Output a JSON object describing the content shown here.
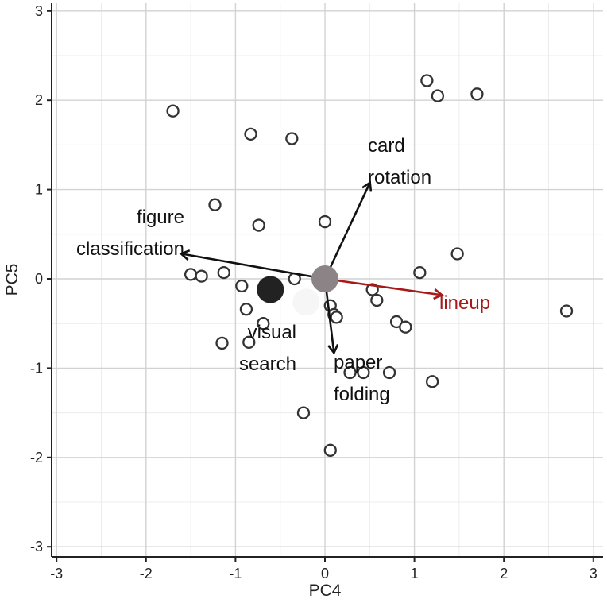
{
  "chart_data": {
    "type": "scatter",
    "xlabel": "PC4",
    "ylabel": "PC5",
    "xlim": [
      -3.1,
      3.1
    ],
    "ylim": [
      -3.1,
      3.1
    ],
    "xticks": [
      -3,
      -2,
      -1,
      0,
      1,
      2,
      3
    ],
    "yticks": [
      -3,
      -2,
      -1,
      0,
      1,
      2,
      3
    ],
    "grid": true,
    "points": [
      {
        "x": -1.7,
        "y": 1.88
      },
      {
        "x": -0.83,
        "y": 1.62
      },
      {
        "x": -0.37,
        "y": 1.57
      },
      {
        "x": 1.14,
        "y": 2.22
      },
      {
        "x": 1.26,
        "y": 2.05
      },
      {
        "x": 1.7,
        "y": 2.07
      },
      {
        "x": -1.23,
        "y": 0.83
      },
      {
        "x": -0.74,
        "y": 0.6
      },
      {
        "x": 0.0,
        "y": 0.64
      },
      {
        "x": 1.48,
        "y": 0.28
      },
      {
        "x": 1.06,
        "y": 0.07
      },
      {
        "x": -1.5,
        "y": 0.05
      },
      {
        "x": -1.38,
        "y": 0.03
      },
      {
        "x": -1.13,
        "y": 0.07
      },
      {
        "x": -0.93,
        "y": -0.08
      },
      {
        "x": -0.88,
        "y": -0.34
      },
      {
        "x": -0.34,
        "y": 0.0
      },
      {
        "x": 0.53,
        "y": -0.12
      },
      {
        "x": 0.58,
        "y": -0.24
      },
      {
        "x": 0.06,
        "y": -0.3
      },
      {
        "x": 0.1,
        "y": -0.4
      },
      {
        "x": 0.13,
        "y": -0.43
      },
      {
        "x": 0.8,
        "y": -0.48
      },
      {
        "x": 0.9,
        "y": -0.54
      },
      {
        "x": 2.7,
        "y": -0.36
      },
      {
        "x": -0.69,
        "y": -0.5
      },
      {
        "x": -1.15,
        "y": -0.72
      },
      {
        "x": -0.85,
        "y": -0.71
      },
      {
        "x": 0.28,
        "y": -1.05
      },
      {
        "x": 0.43,
        "y": -1.05
      },
      {
        "x": 0.72,
        "y": -1.05
      },
      {
        "x": 1.2,
        "y": -1.15
      },
      {
        "x": -0.24,
        "y": -1.5
      },
      {
        "x": 0.06,
        "y": -1.92
      }
    ],
    "centroids": [
      {
        "x": -0.61,
        "y": -0.12,
        "color": "#222222"
      },
      {
        "x": -0.21,
        "y": -0.26,
        "color": "#f6f6f6"
      },
      {
        "x": 0.0,
        "y": 0.0,
        "color": "#8b8385"
      }
    ],
    "vectors": [
      {
        "label_lines": [
          "card",
          "rotation"
        ],
        "x": 0.5,
        "y": 1.07,
        "color": "#111111"
      },
      {
        "label_lines": [
          "figure",
          "classification"
        ],
        "x": -1.6,
        "y": 0.28,
        "color": "#111111"
      },
      {
        "label_lines": [
          "lineup"
        ],
        "x": 1.3,
        "y": -0.18,
        "color": "#a51a1a"
      },
      {
        "label_lines": [
          "paper",
          "folding"
        ],
        "x": 0.1,
        "y": -0.82,
        "color": "#111111"
      },
      {
        "label_lines": [
          "visual",
          "search"
        ],
        "x": null,
        "y": null,
        "color": "#111111"
      }
    ]
  }
}
